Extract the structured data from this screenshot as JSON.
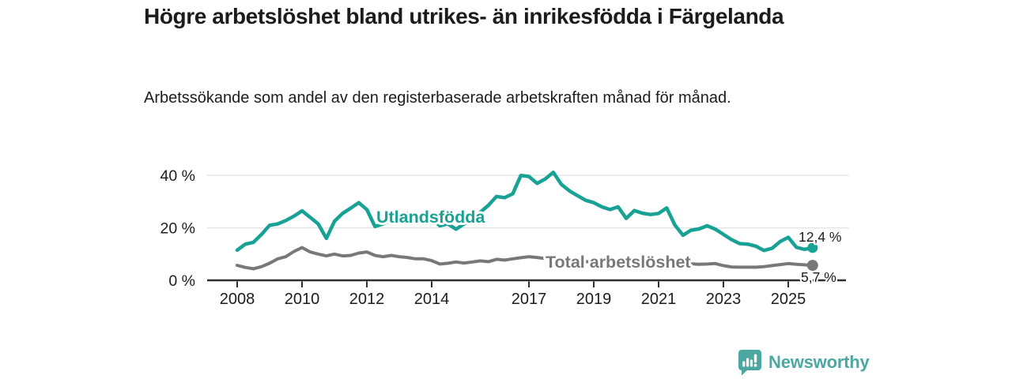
{
  "title": "Högre arbetslöshet bland utrikes- än inrikesfödda i Färgelanda",
  "subtitle": "Arbetssökande som andel av den registerbaserade arbetskraften månad för månad.",
  "branding": {
    "logo_text": "Newsworthy",
    "logo_icon": "bar-chart-speech-bubble",
    "logo_color": "#4da7a1"
  },
  "colors": {
    "foreign_born_line": "#18a195",
    "total_line": "#787878",
    "axis": "#2f2f2f",
    "gridline": "#e3e3e3",
    "text": "#1c1c1c",
    "background": "#ffffff"
  },
  "chart_data": {
    "type": "line",
    "title": "Högre arbetslöshet bland utrikes- än inrikesfödda i Färgelanda",
    "subtitle": "Arbetssökande som andel av den registerbaserade arbetskraften månad för månad.",
    "unit": "%",
    "x_start": 2008.0,
    "x_step_years": 0.25,
    "xlim": [
      2007.1,
      2026.8
    ],
    "ylim": [
      0,
      44
    ],
    "grid": "horizontal",
    "legend_position": "inline-labels",
    "x_tick_years": [
      2008,
      2010,
      2012,
      2014,
      2017,
      2019,
      2021,
      2023,
      2025
    ],
    "x_tick_labels": [
      "2008",
      "2010",
      "2012",
      "2014",
      "2017",
      "2019",
      "2021",
      "2023",
      "2025"
    ],
    "y_ticks": [
      {
        "value": 0,
        "label": "0 %"
      },
      {
        "value": 20,
        "label": "20 %"
      },
      {
        "value": 40,
        "label": "40 %"
      }
    ],
    "series": [
      {
        "name": "Utlandsfödda",
        "color": "#18a195",
        "end_value": 12.4,
        "end_label": "12,4 %",
        "values": [
          11.5,
          13.8,
          14.5,
          17.5,
          21.0,
          21.5,
          22.8,
          24.5,
          26.5,
          24.0,
          21.5,
          16.0,
          22.5,
          25.5,
          27.5,
          29.6,
          27.0,
          20.5,
          21.5,
          23.0,
          24.5,
          25.5,
          24.0,
          22.5,
          23.5,
          20.8,
          21.5,
          19.5,
          21.5,
          23.5,
          26.0,
          28.6,
          32.0,
          31.5,
          33.0,
          40.0,
          39.6,
          37.0,
          38.6,
          41.2,
          36.6,
          34.1,
          32.3,
          30.5,
          29.6,
          28.0,
          27.0,
          28.0,
          23.6,
          26.6,
          25.6,
          25.1,
          25.5,
          27.6,
          21.1,
          17.2,
          19.1,
          19.6,
          20.8,
          19.5,
          17.5,
          15.5,
          14.0,
          13.8,
          13.0,
          11.4,
          12.2,
          14.8,
          16.4,
          12.6,
          11.8,
          12.4
        ]
      },
      {
        "name": "Total arbetslöshet",
        "color": "#787878",
        "end_value": 5.7,
        "end_label": "5,7 %",
        "values": [
          5.7,
          4.9,
          4.4,
          5.2,
          6.5,
          8.2,
          9.0,
          11.0,
          12.5,
          10.8,
          10.0,
          9.3,
          10.0,
          9.3,
          9.5,
          10.4,
          10.8,
          9.5,
          9.0,
          9.5,
          9.0,
          8.7,
          8.2,
          8.2,
          7.5,
          6.2,
          6.5,
          7.0,
          6.6,
          7.0,
          7.4,
          7.1,
          8.0,
          7.7,
          8.2,
          8.6,
          9.0,
          8.7,
          8.3,
          8.0,
          7.8,
          7.5,
          7.3,
          7.1,
          7.0,
          6.9,
          6.8,
          7.0,
          7.6,
          8.1,
          7.9,
          7.6,
          7.3,
          7.1,
          6.9,
          6.6,
          6.3,
          6.1,
          6.2,
          6.4,
          5.6,
          5.1,
          5.0,
          5.0,
          5.0,
          5.2,
          5.6,
          6.0,
          6.4,
          6.1,
          5.9,
          5.7
        ]
      }
    ]
  }
}
